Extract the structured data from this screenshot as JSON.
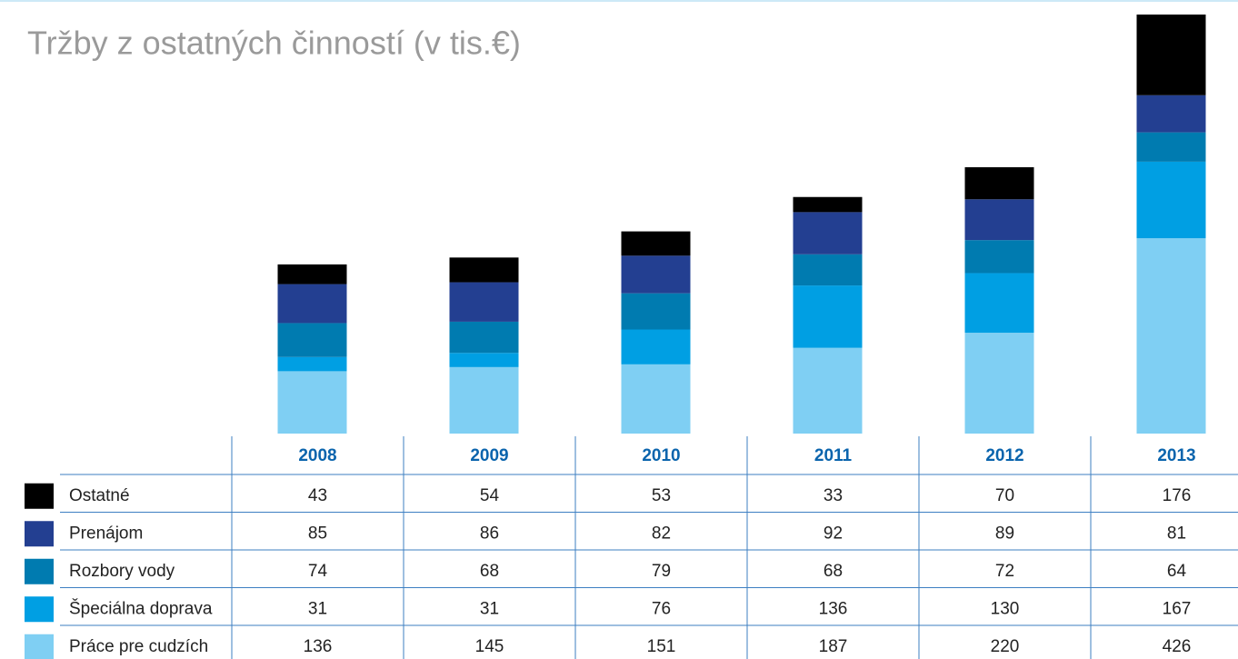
{
  "chart_data": {
    "type": "stacked-bar-table",
    "title": "Tržby z ostatných činností (v tis.€)",
    "categories": [
      "2008",
      "2009",
      "2010",
      "2011",
      "2012",
      "2013"
    ],
    "series": [
      {
        "name": "Ostatné",
        "color": "#000000",
        "values": [
          43,
          54,
          53,
          33,
          70,
          176
        ]
      },
      {
        "name": "Prenájom",
        "color": "#233f91",
        "values": [
          85,
          86,
          82,
          92,
          89,
          81
        ]
      },
      {
        "name": "Rozbory vody",
        "color": "#007bb0",
        "values": [
          74,
          68,
          79,
          68,
          72,
          64
        ]
      },
      {
        "name": "Špeciálna doprava",
        "color": "#009fe3",
        "values": [
          31,
          31,
          76,
          136,
          130,
          167
        ]
      },
      {
        "name": "Práce pre cudzích",
        "color": "#7fcff3",
        "values": [
          136,
          145,
          151,
          187,
          220,
          426
        ]
      }
    ]
  }
}
